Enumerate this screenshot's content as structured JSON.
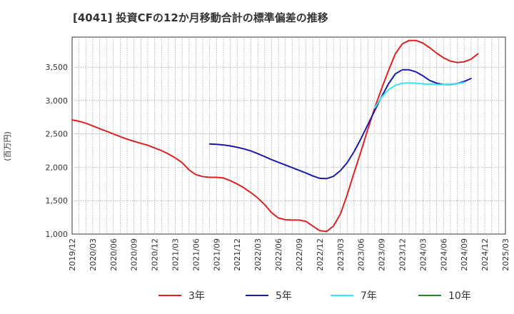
{
  "chart_data": {
    "type": "line",
    "title": "[4041]  投資CFの12か月移動合計の標準偏差の推移",
    "ylabel": "(百万円)",
    "xlabel": "",
    "ylim": [
      1000,
      3950
    ],
    "grid": true,
    "legend_position": "bottom",
    "yticks": [
      1000,
      1500,
      2000,
      2500,
      3000,
      3500
    ],
    "ytick_labels": [
      "1,000",
      "1,500",
      "2,000",
      "2,500",
      "3,000",
      "3,500"
    ],
    "xticks": [
      "2019/12",
      "2020/03",
      "2020/06",
      "2020/09",
      "2020/12",
      "2021/03",
      "2021/06",
      "2021/09",
      "2021/12",
      "2022/03",
      "2022/06",
      "2022/09",
      "2022/12",
      "2023/03",
      "2023/06",
      "2023/09",
      "2023/12",
      "2024/03",
      "2024/06",
      "2024/09",
      "2024/12",
      "2025/03"
    ],
    "series": [
      {
        "name": "3年",
        "color": "#dd2222",
        "start": "2019/12",
        "values": [
          2710,
          2690,
          2660,
          2620,
          2580,
          2540,
          2500,
          2460,
          2420,
          2390,
          2360,
          2330,
          2290,
          2250,
          2200,
          2140,
          2070,
          1960,
          1890,
          1860,
          1850,
          1850,
          1840,
          1800,
          1750,
          1690,
          1620,
          1540,
          1440,
          1320,
          1240,
          1215,
          1210,
          1210,
          1190,
          1120,
          1050,
          1040,
          1120,
          1300,
          1590,
          1920,
          2240,
          2570,
          2890,
          3180,
          3450,
          3700,
          3850,
          3900,
          3900,
          3860,
          3790,
          3710,
          3640,
          3590,
          3570,
          3580,
          3620,
          3700
        ]
      },
      {
        "name": "5年",
        "color": "#1a1aaa",
        "start": "2021/08",
        "values": [
          2350,
          2345,
          2335,
          2320,
          2300,
          2275,
          2245,
          2205,
          2160,
          2115,
          2075,
          2035,
          1995,
          1955,
          1915,
          1870,
          1835,
          1830,
          1865,
          1950,
          2070,
          2235,
          2430,
          2640,
          2850,
          3060,
          3250,
          3400,
          3460,
          3460,
          3430,
          3370,
          3300,
          3260,
          3240,
          3240,
          3255,
          3285,
          3330
        ]
      },
      {
        "name": "7年",
        "color": "#33e6f0",
        "start": "2023/08",
        "values": [
          2890,
          3050,
          3160,
          3230,
          3260,
          3265,
          3260,
          3250,
          3245,
          3240,
          3240,
          3245,
          3255,
          3270
        ]
      },
      {
        "name": "10年",
        "color": "#228822",
        "start": "2019/12",
        "values": []
      }
    ]
  }
}
